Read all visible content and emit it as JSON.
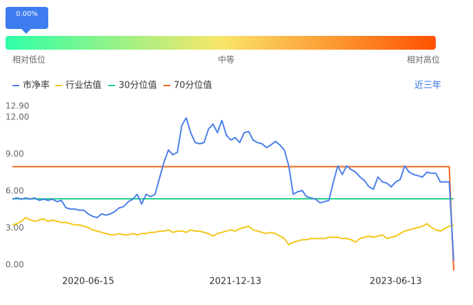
{
  "indicator": {
    "value": 0,
    "label": "0.00%"
  },
  "scale_labels": [
    "相对低位",
    "中等",
    "相对高位"
  ],
  "range_selector": "近三年",
  "chart_data": {
    "type": "line",
    "categories": [
      null,
      null,
      null,
      null,
      null,
      null,
      null,
      null,
      null,
      null,
      null,
      null,
      null,
      null,
      null,
      null,
      null,
      "2020-06-15",
      null,
      null,
      null,
      null,
      null,
      null,
      null,
      null,
      null,
      null,
      null,
      null,
      null,
      null,
      null,
      null,
      null,
      null,
      null,
      null,
      null,
      null,
      null,
      null,
      null,
      null,
      null,
      null,
      null,
      null,
      null,
      null,
      "2021-12-13",
      null,
      null,
      null,
      null,
      null,
      null,
      null,
      null,
      null,
      null,
      null,
      null,
      null,
      null,
      null,
      null,
      null,
      null,
      null,
      null,
      null,
      null,
      null,
      null,
      null,
      null,
      null,
      null,
      null,
      null,
      null,
      null,
      null,
      null,
      null,
      "2023-06-13",
      null,
      null,
      null,
      null,
      null,
      null,
      null,
      null,
      null,
      null,
      null,
      null,
      null
    ],
    "series": [
      {
        "name": "市净率",
        "color": "#4a7ee8",
        "values": [
          5.8,
          5.9,
          5.8,
          5.9,
          5.8,
          5.9,
          5.7,
          5.8,
          5.7,
          5.8,
          5.6,
          5.7,
          5.1,
          5.0,
          5.0,
          4.9,
          4.9,
          4.6,
          4.4,
          4.3,
          4.6,
          4.5,
          4.6,
          4.8,
          5.1,
          5.2,
          5.6,
          5.8,
          6.2,
          5.4,
          6.2,
          6.0,
          6.2,
          7.5,
          8.8,
          9.8,
          9.4,
          9.6,
          11.8,
          12.4,
          11.2,
          10.4,
          10.3,
          10.4,
          11.5,
          11.9,
          11.2,
          12.2,
          11.0,
          10.6,
          10.8,
          10.4,
          11.2,
          11.3,
          10.6,
          10.4,
          10.3,
          10.0,
          10.2,
          10.5,
          10.2,
          9.8,
          8.5,
          6.2,
          6.4,
          6.5,
          6.0,
          5.9,
          5.8,
          5.5,
          5.6,
          5.7,
          7.2,
          8.5,
          7.8,
          8.5,
          8.2,
          8.0,
          7.6,
          7.3,
          6.8,
          6.6,
          7.6,
          7.2,
          7.1,
          6.8,
          7.2,
          7.4,
          8.5,
          8.0,
          7.8,
          7.7,
          7.6,
          8.0,
          7.9,
          7.9,
          7.2,
          7.2,
          7.2,
          0.8
        ]
      },
      {
        "name": "行业估值",
        "color": "#f5c518",
        "values": [
          3.7,
          3.8,
          4.0,
          4.3,
          4.1,
          4.0,
          4.1,
          4.2,
          4.0,
          4.1,
          4.0,
          3.9,
          3.9,
          3.8,
          3.7,
          3.7,
          3.6,
          3.5,
          3.3,
          3.2,
          3.1,
          3.0,
          2.9,
          2.9,
          3.0,
          2.9,
          2.9,
          3.0,
          2.9,
          3.0,
          3.0,
          3.1,
          3.1,
          3.2,
          3.2,
          3.3,
          3.1,
          3.2,
          3.2,
          3.1,
          3.3,
          3.2,
          3.2,
          3.1,
          3.0,
          2.8,
          3.0,
          3.1,
          3.2,
          3.3,
          3.2,
          3.4,
          3.5,
          3.6,
          3.3,
          3.2,
          3.1,
          3.0,
          3.1,
          3.0,
          2.8,
          2.6,
          2.1,
          2.3,
          2.4,
          2.5,
          2.5,
          2.6,
          2.6,
          2.6,
          2.6,
          2.7,
          2.7,
          2.7,
          2.6,
          2.6,
          2.5,
          2.3,
          2.6,
          2.7,
          2.8,
          2.7,
          2.8,
          2.9,
          2.6,
          2.7,
          2.8,
          3.0,
          3.2,
          3.3,
          3.4,
          3.5,
          3.6,
          3.8,
          3.5,
          3.3,
          3.2,
          3.4,
          3.6,
          3.7
        ]
      },
      {
        "name": "30分位值",
        "color": "#1fd08a",
        "values": [
          5.83,
          5.83,
          5.83,
          5.83,
          5.83,
          5.83,
          5.83,
          5.83,
          5.83,
          5.83,
          5.83,
          5.83,
          5.83,
          5.83,
          5.83,
          5.83,
          5.83,
          5.83,
          5.83,
          5.83,
          5.83,
          5.83,
          5.83,
          5.83,
          5.83,
          5.83,
          5.83,
          5.83,
          5.83,
          5.83,
          5.83,
          5.83,
          5.83,
          5.83,
          5.83,
          5.83,
          5.83,
          5.83,
          5.83,
          5.83,
          5.83,
          5.83,
          5.83,
          5.83,
          5.83,
          5.83,
          5.83,
          5.83,
          5.83,
          5.83,
          5.83,
          5.83,
          5.83,
          5.83,
          5.83,
          5.83,
          5.83,
          5.83,
          5.83,
          5.83,
          5.83,
          5.83,
          5.83,
          5.83,
          5.83,
          5.83,
          5.83,
          5.83,
          5.83,
          5.83,
          5.83,
          5.83,
          5.83,
          5.83,
          5.83,
          5.83,
          5.83,
          5.83,
          5.83,
          5.83,
          5.83,
          5.83,
          5.83,
          5.83,
          5.83,
          5.83,
          5.83,
          5.83,
          5.83,
          5.83,
          5.83,
          5.83,
          5.83,
          5.83,
          5.83,
          5.83,
          5.83,
          5.83,
          5.83,
          5.83
        ]
      },
      {
        "name": "70分位值",
        "color": "#f0641e",
        "values": [
          8.44,
          8.44,
          8.44,
          8.44,
          8.44,
          8.44,
          8.44,
          8.44,
          8.44,
          8.44,
          8.44,
          8.44,
          8.44,
          8.44,
          8.44,
          8.44,
          8.44,
          8.44,
          8.44,
          8.44,
          8.44,
          8.44,
          8.44,
          8.44,
          8.44,
          8.44,
          8.44,
          8.44,
          8.44,
          8.44,
          8.44,
          8.44,
          8.44,
          8.44,
          8.44,
          8.44,
          8.44,
          8.44,
          8.44,
          8.44,
          8.44,
          8.44,
          8.44,
          8.44,
          8.44,
          8.44,
          8.44,
          8.44,
          8.44,
          8.44,
          8.44,
          8.44,
          8.44,
          8.44,
          8.44,
          8.44,
          8.44,
          8.44,
          8.44,
          8.44,
          8.44,
          8.44,
          8.44,
          8.44,
          8.44,
          8.44,
          8.44,
          8.44,
          8.44,
          8.44,
          8.44,
          8.44,
          8.44,
          8.44,
          8.44,
          8.44,
          8.44,
          8.44,
          8.44,
          8.44,
          8.44,
          8.44,
          8.44,
          8.44,
          8.44,
          8.44,
          8.44,
          8.44,
          8.44,
          8.44,
          8.44,
          8.44,
          8.44,
          8.44,
          8.44,
          8.44,
          8.44,
          8.44,
          8.44,
          0
        ]
      }
    ],
    "ylim": [
      0,
      12.9
    ],
    "yticks": [
      {
        "value": 0,
        "label": "0.00"
      },
      {
        "value": 3,
        "label": "3.00"
      },
      {
        "value": 6,
        "label": "6.00"
      },
      {
        "value": 9,
        "label": "9.00"
      },
      {
        "value": 12,
        "label": "12.00"
      },
      {
        "value": 12.9,
        "label": "12.90"
      }
    ],
    "grid": false
  }
}
